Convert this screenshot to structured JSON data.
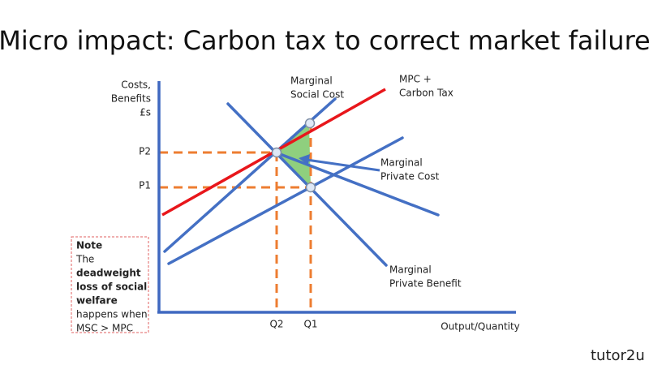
{
  "title": "Micro impact: Carbon tax to correct market failure",
  "axes": {
    "y_label": [
      "Costs,",
      "Benefits",
      "£s"
    ],
    "x_label": "Output/Quantity",
    "prices": [
      "P2",
      "P1"
    ],
    "quantities": [
      "Q2",
      "Q1"
    ]
  },
  "curves": [
    {
      "label": [
        "Marginal",
        "Social Cost"
      ]
    },
    {
      "label": [
        "MPC +",
        "Carbon Tax"
      ]
    },
    {
      "label": [
        "Marginal",
        "Private Cost"
      ]
    },
    {
      "label": [
        "Marginal",
        "Private Benefit"
      ]
    }
  ],
  "note": {
    "heading": "Note",
    "lines": [
      {
        "text": "The",
        "bold": false
      },
      {
        "text": "deadweight",
        "bold": true
      },
      {
        "text": "loss of social",
        "bold": true
      },
      {
        "text": "welfare",
        "bold": true
      },
      {
        "text": "happens when",
        "bold": false
      },
      {
        "text": "MSC > MPC",
        "bold": false
      }
    ]
  },
  "logo": "tutor2u"
}
